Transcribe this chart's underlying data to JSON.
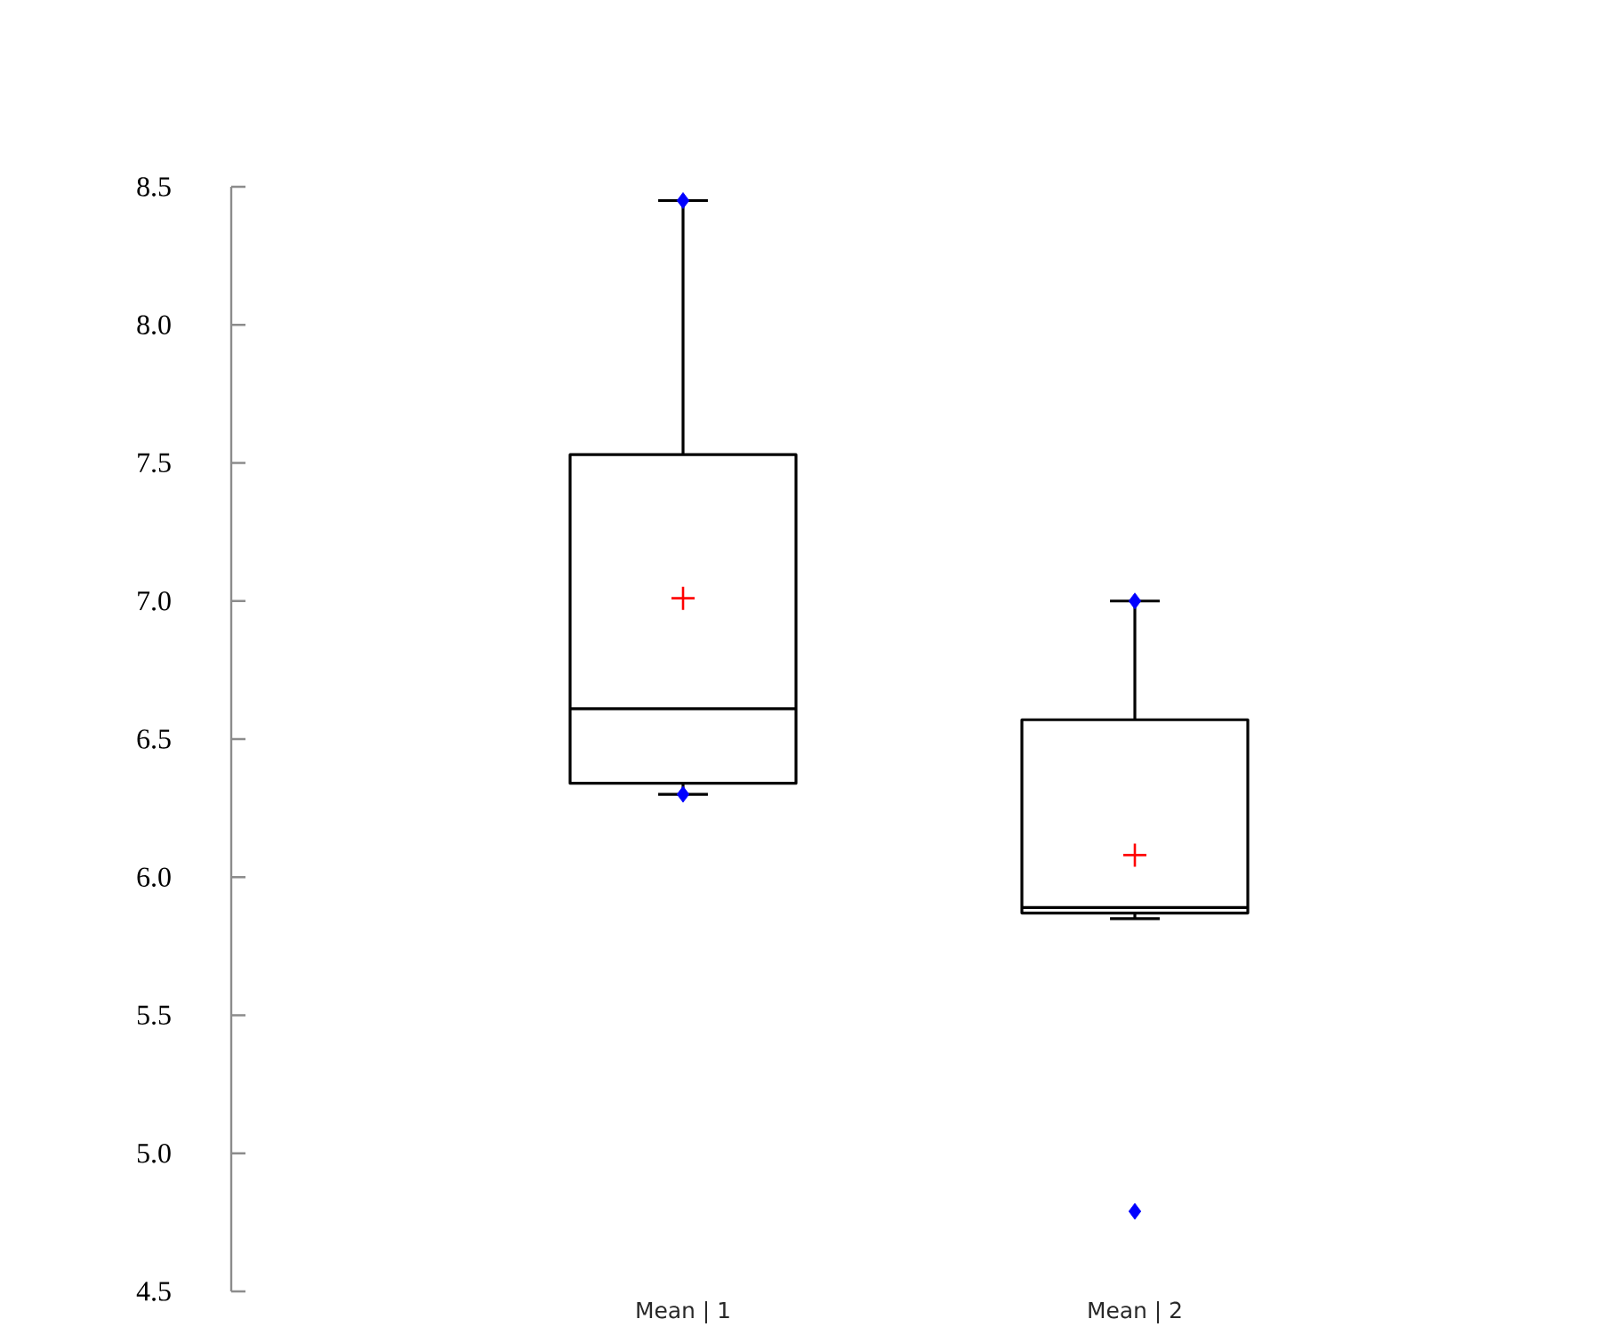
{
  "chart_data": {
    "type": "box",
    "categories": [
      "Mean | 1",
      "Mean | 2"
    ],
    "color": "#000000",
    "boxes": [
      {
        "low": 6.3,
        "q1": 6.34,
        "median": 6.61,
        "q3": 7.53,
        "high": 8.45,
        "mean": 7.01,
        "outliers": [
          8.45,
          6.3
        ]
      },
      {
        "low": 5.85,
        "q1": 5.87,
        "median": 5.89,
        "q3": 6.57,
        "high": 7.0,
        "mean": 6.08,
        "outliers": [
          7.0,
          4.79
        ]
      }
    ],
    "ylim": [
      4.5,
      8.5
    ],
    "yticks": [
      {
        "value": 4.5,
        "label": "4.5"
      },
      {
        "value": 5,
        "label": "5.0"
      },
      {
        "value": 5.5,
        "label": "5.5"
      },
      {
        "value": 6,
        "label": "6.0"
      },
      {
        "value": 6.5,
        "label": "6.5"
      },
      {
        "value": 7,
        "label": "7.0"
      },
      {
        "value": 7.5,
        "label": "7.5"
      },
      {
        "value": 8,
        "label": "8.0"
      },
      {
        "value": 8.5,
        "label": "8.5"
      }
    ],
    "grid": false
  }
}
